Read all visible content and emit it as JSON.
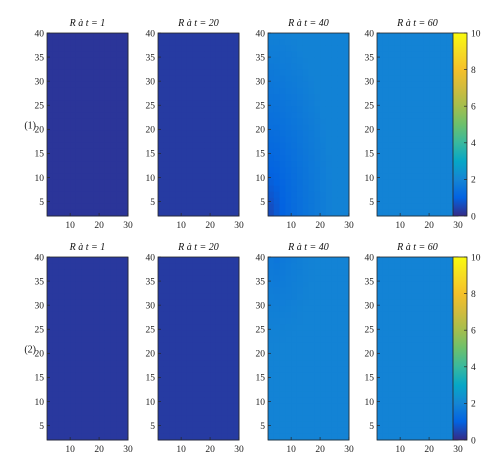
{
  "chart_data": {
    "type": "heatmap",
    "colormap": "parula",
    "colorbar": {
      "range": [
        0,
        10
      ],
      "ticks": [
        0,
        2,
        4,
        6,
        8,
        10
      ]
    },
    "xlim": [
      2,
      30
    ],
    "ylim": [
      2,
      40
    ],
    "xticks": [
      10,
      20,
      30
    ],
    "yticks": [
      5,
      10,
      15,
      20,
      25,
      30,
      35,
      40
    ],
    "rows": [
      {
        "label": "(1)",
        "panels": [
          {
            "title": "R à t = 1",
            "field": "uniform",
            "base": 0.2
          },
          {
            "title": "R à t = 20",
            "field": "uniform",
            "base": 0.3
          },
          {
            "title": "R à t = 40",
            "field": "corner-gradient",
            "min": 0.3,
            "max": 1.9
          },
          {
            "title": "R à t = 60",
            "field": "uniform",
            "base": 1.95
          }
        ]
      },
      {
        "label": "(2)",
        "panels": [
          {
            "title": "R à t = 1",
            "field": "uniform",
            "base": 0.25
          },
          {
            "title": "R à t = 20",
            "field": "uniform",
            "base": 0.3
          },
          {
            "title": "R à t = 40",
            "field": "soft",
            "min": 1.5,
            "max": 1.95
          },
          {
            "title": "R à t = 60",
            "field": "uniform",
            "base": 1.95
          }
        ]
      }
    ]
  }
}
